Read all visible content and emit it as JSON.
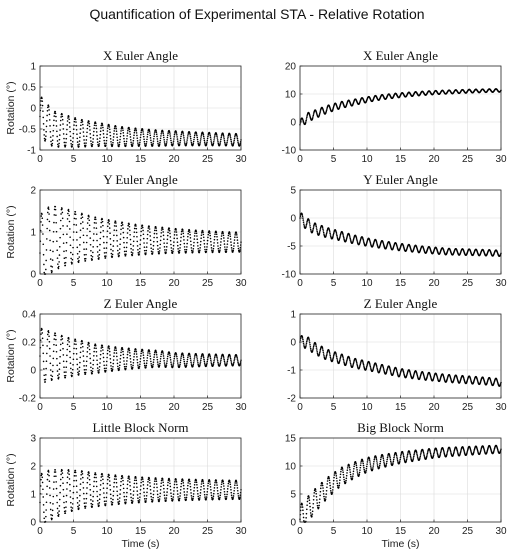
{
  "figure_title": "Quantification of Experimental STA - Relative Rotation",
  "chart_data": [
    {
      "id": "x-left",
      "type": "scatter",
      "title": "X Euler Angle",
      "xlabel": "",
      "ylabel": "Rotation (°)",
      "xlim": [
        0,
        30
      ],
      "ylim": [
        -1,
        1
      ],
      "xticks": [
        0,
        5,
        10,
        15,
        20,
        25,
        30
      ],
      "yticks": [
        -1,
        -0.5,
        0,
        0.5,
        1
      ],
      "yticklabels": [
        "-1",
        "-0.5",
        "0",
        "0.5",
        "1"
      ],
      "grid": true,
      "series": [
        {
          "x": [
            0,
            1,
            2,
            4,
            6,
            8,
            10,
            12,
            15,
            18,
            20,
            22,
            25,
            28,
            30
          ],
          "y": [
            -0.2,
            -0.35,
            -0.5,
            -0.55,
            -0.6,
            -0.62,
            -0.65,
            -0.68,
            -0.7,
            -0.72,
            -0.72,
            -0.73,
            -0.74,
            -0.75,
            -0.76
          ]
        }
      ],
      "oscillation": {
        "period": 1.0,
        "amplitude_start": 1.0,
        "amplitude_end": 0.25
      }
    },
    {
      "id": "x-right",
      "type": "scatter",
      "title": "X Euler Angle",
      "xlabel": "",
      "ylabel": "",
      "xlim": [
        0,
        30
      ],
      "ylim": [
        -10,
        20
      ],
      "xticks": [
        0,
        5,
        10,
        15,
        20,
        25,
        30
      ],
      "yticks": [
        -10,
        0,
        10,
        20
      ],
      "yticklabels": [
        "-10",
        "0",
        "10",
        "20"
      ],
      "grid": true,
      "series": [
        {
          "x": [
            0,
            1,
            2,
            4,
            6,
            8,
            10,
            12,
            15,
            18,
            20,
            22,
            25,
            28,
            30
          ],
          "y": [
            -1,
            1.5,
            2.5,
            4.5,
            6,
            7,
            8,
            8.8,
            9.6,
            10.2,
            10.5,
            10.7,
            11,
            11.2,
            11.3
          ]
        }
      ],
      "oscillation": {
        "period": 1.0,
        "amplitude_start": 3.5,
        "amplitude_end": 1.0
      }
    },
    {
      "id": "y-left",
      "type": "scatter",
      "title": "Y Euler Angle",
      "xlabel": "",
      "ylabel": "Rotation (°)",
      "xlim": [
        0,
        30
      ],
      "ylim": [
        0,
        2
      ],
      "xticks": [
        0,
        5,
        10,
        15,
        20,
        25,
        30
      ],
      "yticks": [
        0,
        1,
        2
      ],
      "yticklabels": [
        "0",
        "1",
        "2"
      ],
      "grid": true,
      "series": [
        {
          "x": [
            0,
            1,
            2,
            4,
            6,
            8,
            10,
            12,
            15,
            18,
            20,
            22,
            25,
            28,
            30
          ],
          "y": [
            0.5,
            0.75,
            0.85,
            0.88,
            0.87,
            0.85,
            0.84,
            0.83,
            0.81,
            0.8,
            0.79,
            0.78,
            0.77,
            0.76,
            0.76
          ]
        }
      ],
      "oscillation": {
        "period": 1.0,
        "amplitude_start": 1.8,
        "amplitude_end": 0.4
      }
    },
    {
      "id": "y-right",
      "type": "scatter",
      "title": "Y Euler Angle",
      "xlabel": "",
      "ylabel": "",
      "xlim": [
        0,
        30
      ],
      "ylim": [
        -10,
        5
      ],
      "xticks": [
        0,
        5,
        10,
        15,
        20,
        25,
        30
      ],
      "yticks": [
        -10,
        -5,
        0,
        5
      ],
      "yticklabels": [
        "-10",
        "-5",
        "0",
        "5"
      ],
      "grid": true,
      "series": [
        {
          "x": [
            0,
            1,
            2,
            4,
            6,
            8,
            10,
            12,
            15,
            18,
            20,
            22,
            25,
            28,
            30
          ],
          "y": [
            0,
            -1,
            -1.8,
            -2.6,
            -3.2,
            -3.8,
            -4.3,
            -4.7,
            -5.2,
            -5.6,
            -5.8,
            -6,
            -6.1,
            -6.2,
            -6.3
          ]
        }
      ],
      "oscillation": {
        "period": 1.0,
        "amplitude_start": 2.2,
        "amplitude_end": 1.0
      }
    },
    {
      "id": "z-left",
      "type": "scatter",
      "title": "Z Euler Angle",
      "xlabel": "",
      "ylabel": "Rotation (°)",
      "xlim": [
        0,
        30
      ],
      "ylim": [
        -0.2,
        0.4
      ],
      "xticks": [
        0,
        5,
        10,
        15,
        20,
        25,
        30
      ],
      "yticks": [
        -0.2,
        0,
        0.2,
        0.4
      ],
      "yticklabels": [
        "-0.2",
        "0",
        "0.2",
        "0.4"
      ],
      "grid": true,
      "series": [
        {
          "x": [
            0,
            1,
            2,
            4,
            6,
            8,
            10,
            12,
            15,
            18,
            20,
            22,
            25,
            28,
            30
          ],
          "y": [
            0.1,
            0.1,
            0.1,
            0.09,
            0.09,
            0.08,
            0.08,
            0.08,
            0.08,
            0.08,
            0.07,
            0.07,
            0.07,
            0.07,
            0.07
          ]
        }
      ],
      "oscillation": {
        "period": 1.0,
        "amplitude_start": 0.4,
        "amplitude_end": 0.06
      }
    },
    {
      "id": "z-right",
      "type": "scatter",
      "title": "Z Euler Angle",
      "xlabel": "",
      "ylabel": "",
      "xlim": [
        0,
        30
      ],
      "ylim": [
        -2,
        1
      ],
      "xticks": [
        0,
        5,
        10,
        15,
        20,
        25,
        30
      ],
      "yticks": [
        -2,
        -1,
        0,
        1
      ],
      "yticklabels": [
        "-2",
        "-1",
        "0",
        "1"
      ],
      "grid": true,
      "series": [
        {
          "x": [
            0,
            1,
            2,
            4,
            6,
            8,
            10,
            12,
            15,
            18,
            20,
            22,
            25,
            28,
            30
          ],
          "y": [
            0,
            0,
            -0.2,
            -0.45,
            -0.6,
            -0.75,
            -0.85,
            -0.95,
            -1.1,
            -1.2,
            -1.25,
            -1.3,
            -1.35,
            -1.4,
            -1.45
          ]
        }
      ],
      "oscillation": {
        "period": 1.0,
        "amplitude_start": 0.45,
        "amplitude_end": 0.25
      }
    },
    {
      "id": "little-block",
      "type": "scatter",
      "title": "Little Block Norm",
      "xlabel": "Time (s)",
      "ylabel": "Rotation (°)",
      "xlim": [
        0,
        30
      ],
      "ylim": [
        0,
        3
      ],
      "xticks": [
        0,
        5,
        10,
        15,
        20,
        25,
        30
      ],
      "yticks": [
        0,
        1,
        2,
        3
      ],
      "yticklabels": [
        "0",
        "1",
        "2",
        "3"
      ],
      "grid": true,
      "series": [
        {
          "x": [
            0,
            1,
            2,
            4,
            6,
            8,
            10,
            12,
            15,
            18,
            20,
            22,
            25,
            28,
            30
          ],
          "y": [
            0.7,
            0.9,
            1,
            1.1,
            1.15,
            1.15,
            1.15,
            1.15,
            1.15,
            1.15,
            1.15,
            1.15,
            1.15,
            1.15,
            1.15
          ]
        }
      ],
      "oscillation": {
        "period": 1.0,
        "amplitude_start": 2.0,
        "amplitude_end": 0.6
      }
    },
    {
      "id": "big-block",
      "type": "scatter",
      "title": "Big Block Norm",
      "xlabel": "Time (s)",
      "ylabel": "",
      "xlim": [
        0,
        30
      ],
      "ylim": [
        0,
        15
      ],
      "xticks": [
        0,
        5,
        10,
        15,
        20,
        25,
        30
      ],
      "yticks": [
        0,
        5,
        10,
        15
      ],
      "yticklabels": [
        "0",
        "5",
        "10",
        "15"
      ],
      "grid": true,
      "series": [
        {
          "x": [
            0,
            1,
            2,
            4,
            6,
            8,
            10,
            12,
            15,
            18,
            20,
            22,
            25,
            28,
            30
          ],
          "y": [
            0.5,
            2,
            3.5,
            6,
            8,
            9.2,
            10.2,
            10.8,
            11.5,
            12,
            12.3,
            12.5,
            12.7,
            12.9,
            13
          ]
        }
      ],
      "oscillation": {
        "period": 1.0,
        "amplitude_start": 5.0,
        "amplitude_end": 1.2
      }
    }
  ]
}
